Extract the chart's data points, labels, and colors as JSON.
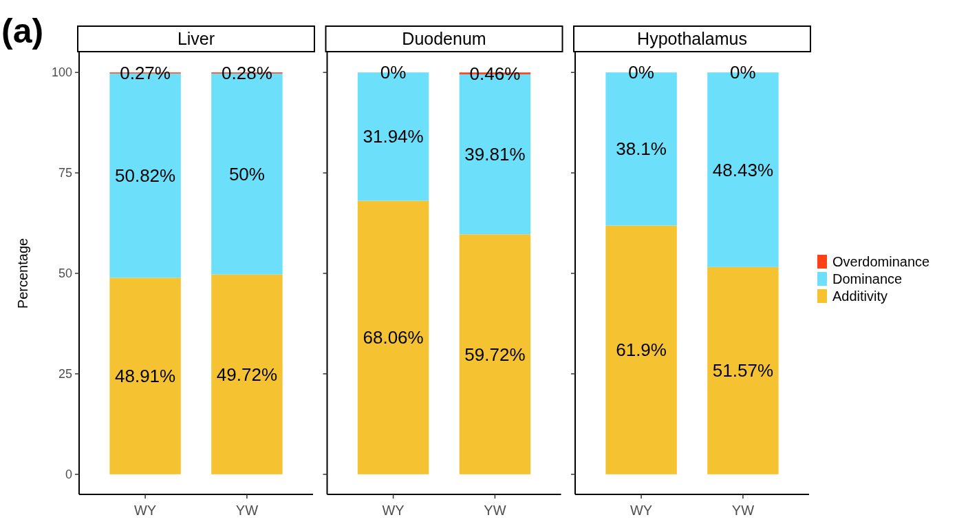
{
  "chart_data": [
    {
      "type": "bar",
      "stacked": true,
      "title": "Liver",
      "ylabel": "Percentage",
      "categories": [
        "WY",
        "YW"
      ],
      "ylim": [
        -5,
        105
      ],
      "yticks": [
        0,
        25,
        50,
        75,
        100
      ],
      "legend": false,
      "annotations": [
        "(a)"
      ],
      "series": [
        {
          "color": "#f5c332",
          "values": [
            48.91,
            49.72
          ],
          "value_labels": [
            "48.91%",
            "49.72%"
          ]
        },
        {
          "color": "#6ce0fb",
          "values": [
            50.82,
            50
          ],
          "value_labels": [
            "50.82%",
            "50%"
          ]
        },
        {
          "color": "#ff4019",
          "values": [
            0.27,
            0.28
          ],
          "value_labels": [
            "0.27%",
            "0.28%"
          ]
        }
      ]
    },
    {
      "type": "bar",
      "stacked": true,
      "title": "Duodenum",
      "categories": [
        "WY",
        "YW"
      ],
      "ylim": [
        -5,
        105
      ],
      "yticks": [
        0,
        25,
        50,
        75,
        100
      ],
      "tick_labels": "x",
      "legend": false,
      "series": [
        {
          "color": "#f5c332",
          "values": [
            68.06,
            59.72
          ],
          "value_labels": [
            "68.06%",
            "59.72%"
          ]
        },
        {
          "color": "#6ce0fb",
          "values": [
            31.94,
            39.81
          ],
          "value_labels": [
            "31.94%",
            "39.81%"
          ]
        },
        {
          "color": "#ff4019",
          "values": [
            0,
            0.46
          ],
          "value_labels": [
            "0%",
            "0.46%"
          ]
        }
      ]
    },
    {
      "type": "bar",
      "stacked": true,
      "title": "Hypothalamus",
      "categories": [
        "WY",
        "YW"
      ],
      "ylim": [
        -5,
        105
      ],
      "yticks": [
        0,
        25,
        50,
        75,
        100
      ],
      "tick_labels": "x",
      "legend": "right",
      "series": [
        {
          "name": "Additivity",
          "color": "#f5c332",
          "values": [
            61.9,
            51.57
          ],
          "value_labels": [
            "61.9%",
            "51.57%"
          ]
        },
        {
          "name": "Dominance",
          "color": "#6ce0fb",
          "values": [
            38.1,
            48.43
          ],
          "value_labels": [
            "38.1%",
            "48.43%"
          ]
        },
        {
          "name": "Overdominance",
          "color": "#ff4019",
          "values": [
            0,
            0
          ],
          "value_labels": [
            "0%",
            "0%"
          ]
        }
      ]
    }
  ]
}
